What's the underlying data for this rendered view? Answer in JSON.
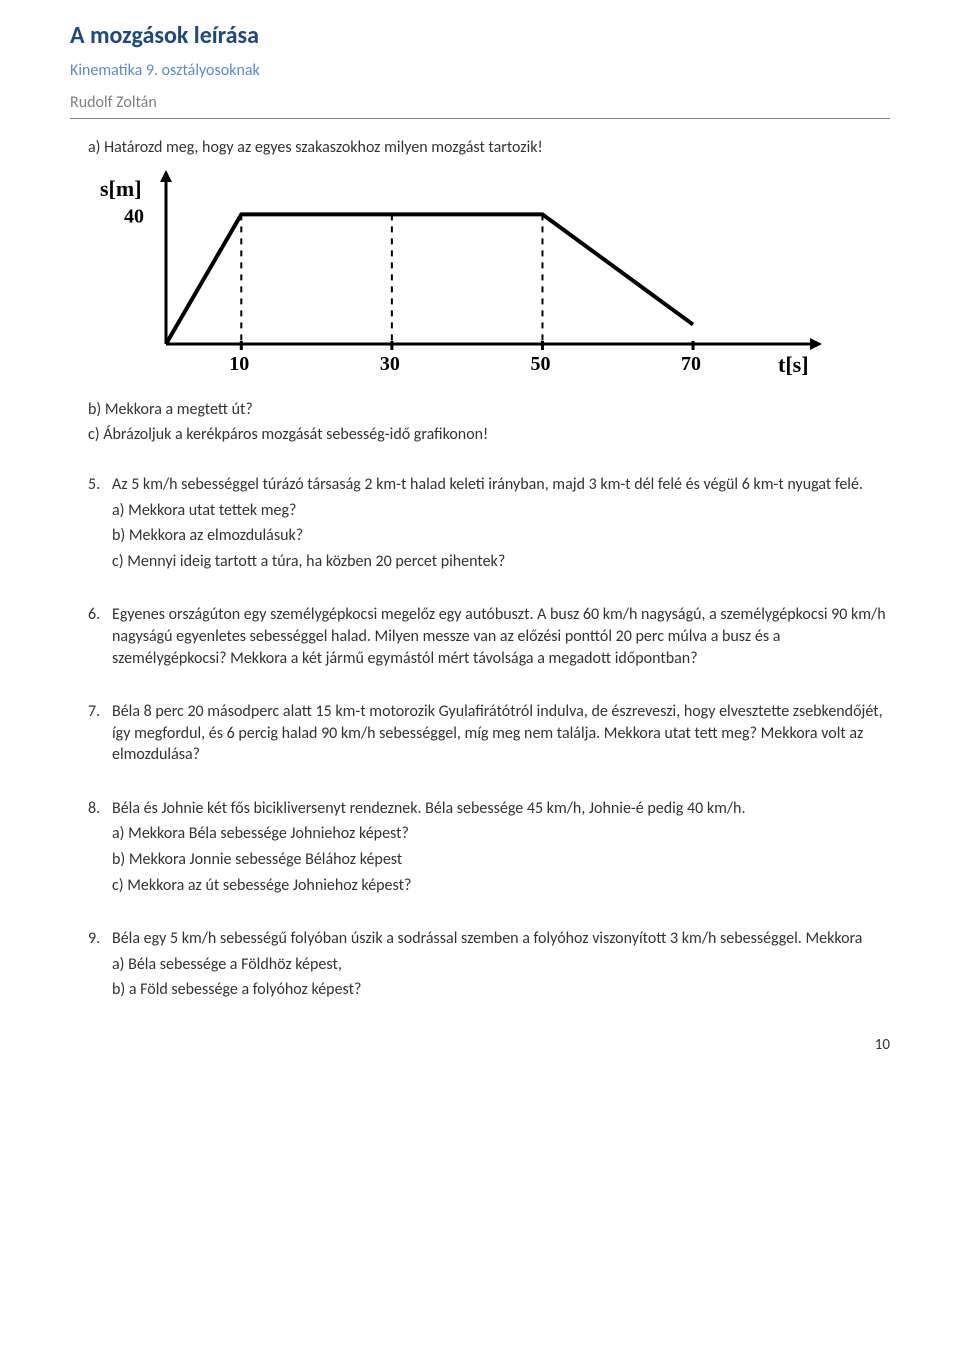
{
  "header": {
    "title": "A mozgások leírása",
    "subtitle": "Kinematika 9. osztályosoknak",
    "author": "Rudolf Zoltán"
  },
  "intro": {
    "a": "a) Határozd meg, hogy az egyes szakaszokhoz milyen mozgást tartozik!",
    "b": "b) Mekkora a megtett út?",
    "c": "c) Ábrázoljuk a kerékpáros mozgását sebesség-idő grafikonon!"
  },
  "chart": {
    "type": "line",
    "y_label": "s[m]",
    "y_ticks": [
      40
    ],
    "x_label": "t[s]",
    "x_ticks": [
      10,
      30,
      50,
      70
    ],
    "xlim": [
      0,
      85
    ],
    "ylim": [
      0,
      50
    ],
    "points": [
      {
        "x": 0,
        "y": 0
      },
      {
        "x": 10,
        "y": 40
      },
      {
        "x": 50,
        "y": 40
      },
      {
        "x": 70,
        "y": 6
      }
    ],
    "dashed_x": [
      10,
      30,
      50
    ],
    "line_color": "#000000",
    "axis_color": "#000000",
    "background_color": "#ffffff",
    "line_width": 4,
    "axis_width": 3,
    "dash_pattern": "6,6",
    "font_family": "serif",
    "label_fontsize": 22,
    "tick_fontsize": 20
  },
  "problems": {
    "p5": {
      "num": "5.",
      "text": "Az 5 km/h sebességgel túrázó társaság 2 km-t halad keleti irányban, majd 3 km-t dél felé és végül 6 km-t nyugat felé.",
      "a": "a) Mekkora utat tettek meg?",
      "b": "b) Mekkora az elmozdulásuk?",
      "c": "c) Mennyi ideig tartott a túra, ha közben 20 percet pihentek?"
    },
    "p6": {
      "num": "6.",
      "text": "Egyenes országúton egy személygépkocsi megelőz egy autóbuszt. A busz 60 km/h nagyságú, a személygépkocsi 90 km/h nagyságú egyenletes sebességgel halad. Milyen messze van az előzési ponttól 20 perc múlva a busz és a személygépkocsi? Mekkora a két jármű egymástól mért távolsága a megadott időpontban?"
    },
    "p7": {
      "num": "7.",
      "text": " Béla 8 perc 20 másodperc alatt 15 km-t motorozik Gyulafirátótról indulva, de észreveszi, hogy elvesztette zsebkendőjét, így megfordul, és 6 percig halad 90 km/h sebességgel, míg meg nem találja. Mekkora utat tett meg? Mekkora volt az elmozdulása?"
    },
    "p8": {
      "num": "8.",
      "text": "Béla és Johnie két fős bicikliversenyt rendeznek. Béla sebessége 45 km/h, Johnie-é pedig 40 km/h.",
      "a": "a) Mekkora Béla sebessége Johniehoz képest?",
      "b": "b) Mekkora Jonnie sebessége Bélához képest",
      "c": "c) Mekkora az út sebessége Johniehoz képest?"
    },
    "p9": {
      "num": "9.",
      "text": "Béla egy 5 km/h sebességű folyóban úszik a sodrással szemben a folyóhoz viszonyított 3 km/h sebességgel. Mekkora",
      "a": "a) Béla sebessége a Földhöz képest,",
      "b": "b) a Föld sebessége a folyóhoz képest?"
    }
  },
  "page_number": "10"
}
